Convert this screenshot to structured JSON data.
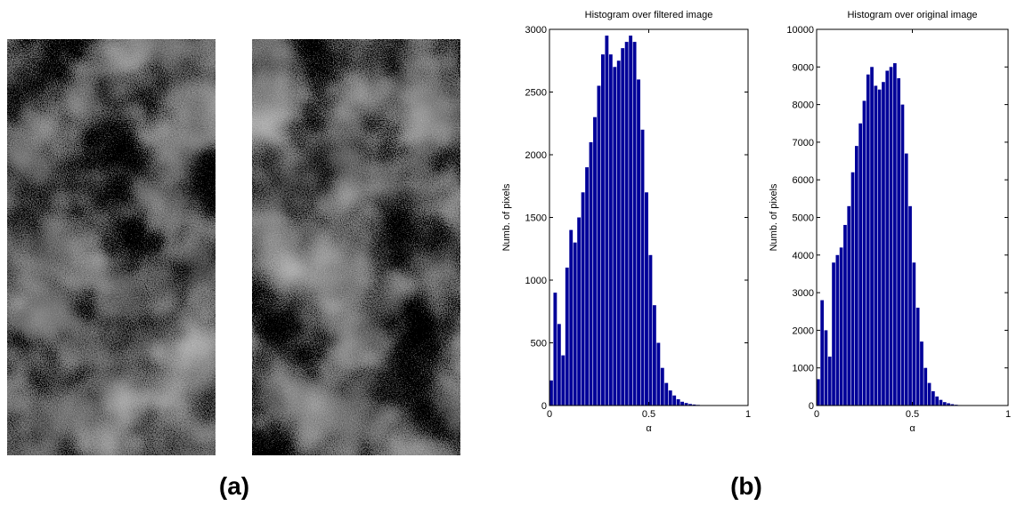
{
  "panel_labels": [
    "(a)",
    "(b)"
  ],
  "chart_data": [
    {
      "type": "histogram",
      "title": "Histogram over filtered image",
      "x_label": "α",
      "y_label": "Numb. of pixels",
      "color": "#000099",
      "bins": [
        0,
        0.02,
        0.04,
        0.06,
        0.08,
        0.1,
        0.12,
        0.14,
        0.16,
        0.18,
        0.2,
        0.22,
        0.24,
        0.26,
        0.28,
        0.3,
        0.32,
        0.34,
        0.36,
        0.38,
        0.4,
        0.42,
        0.44,
        0.46,
        0.48,
        0.5,
        0.52,
        0.54,
        0.56,
        0.58,
        0.6,
        0.62,
        0.64,
        0.66,
        0.68,
        0.7,
        0.72,
        0.74,
        0.76,
        0.78,
        0.8,
        0.82,
        0.84,
        0.86,
        0.88,
        0.9,
        0.92,
        0.94,
        0.96,
        0.98,
        1
      ],
      "values": [
        200,
        900,
        650,
        400,
        1100,
        1400,
        1300,
        1500,
        1700,
        1900,
        2100,
        2300,
        2550,
        2800,
        2950,
        2800,
        2700,
        2750,
        2850,
        2900,
        2950,
        2900,
        2600,
        2200,
        1700,
        1200,
        800,
        500,
        300,
        180,
        120,
        80,
        50,
        30,
        20,
        12,
        8,
        5,
        3,
        2,
        0,
        0,
        0,
        0,
        0,
        0,
        0,
        0,
        0,
        0
      ],
      "xlim": [
        0,
        1
      ],
      "xticks": [
        0,
        0.5,
        1
      ],
      "ylim": [
        0,
        3000
      ],
      "yticks": [
        0,
        500,
        1000,
        1500,
        2000,
        2500,
        3000
      ]
    },
    {
      "type": "histogram",
      "title": "Histogram over original image",
      "x_label": "α",
      "y_label": "Numb. of pixels",
      "color": "#000099",
      "bins": [
        0,
        0.02,
        0.04,
        0.06,
        0.08,
        0.1,
        0.12,
        0.14,
        0.16,
        0.18,
        0.2,
        0.22,
        0.24,
        0.26,
        0.28,
        0.3,
        0.32,
        0.34,
        0.36,
        0.38,
        0.4,
        0.42,
        0.44,
        0.46,
        0.48,
        0.5,
        0.52,
        0.54,
        0.56,
        0.58,
        0.6,
        0.62,
        0.64,
        0.66,
        0.68,
        0.7,
        0.72,
        0.74,
        0.76,
        0.78,
        0.8,
        0.82,
        0.84,
        0.86,
        0.88,
        0.9,
        0.92,
        0.94,
        0.96,
        0.98,
        1
      ],
      "values": [
        700,
        2800,
        2000,
        1300,
        3800,
        4000,
        4200,
        4800,
        5300,
        6200,
        6900,
        7500,
        8100,
        8800,
        9000,
        8500,
        8400,
        8600,
        8900,
        9000,
        9100,
        8700,
        8000,
        6700,
        5300,
        3800,
        2600,
        1700,
        1000,
        600,
        380,
        240,
        150,
        90,
        60,
        35,
        20,
        12,
        6,
        3,
        0,
        0,
        0,
        0,
        0,
        0,
        0,
        0,
        0,
        0
      ],
      "xlim": [
        0,
        1
      ],
      "xticks": [
        0,
        0.5,
        1
      ],
      "ylim": [
        0,
        10000
      ],
      "yticks": [
        0,
        1000,
        2000,
        3000,
        4000,
        5000,
        6000,
        7000,
        8000,
        9000,
        10000
      ]
    }
  ]
}
